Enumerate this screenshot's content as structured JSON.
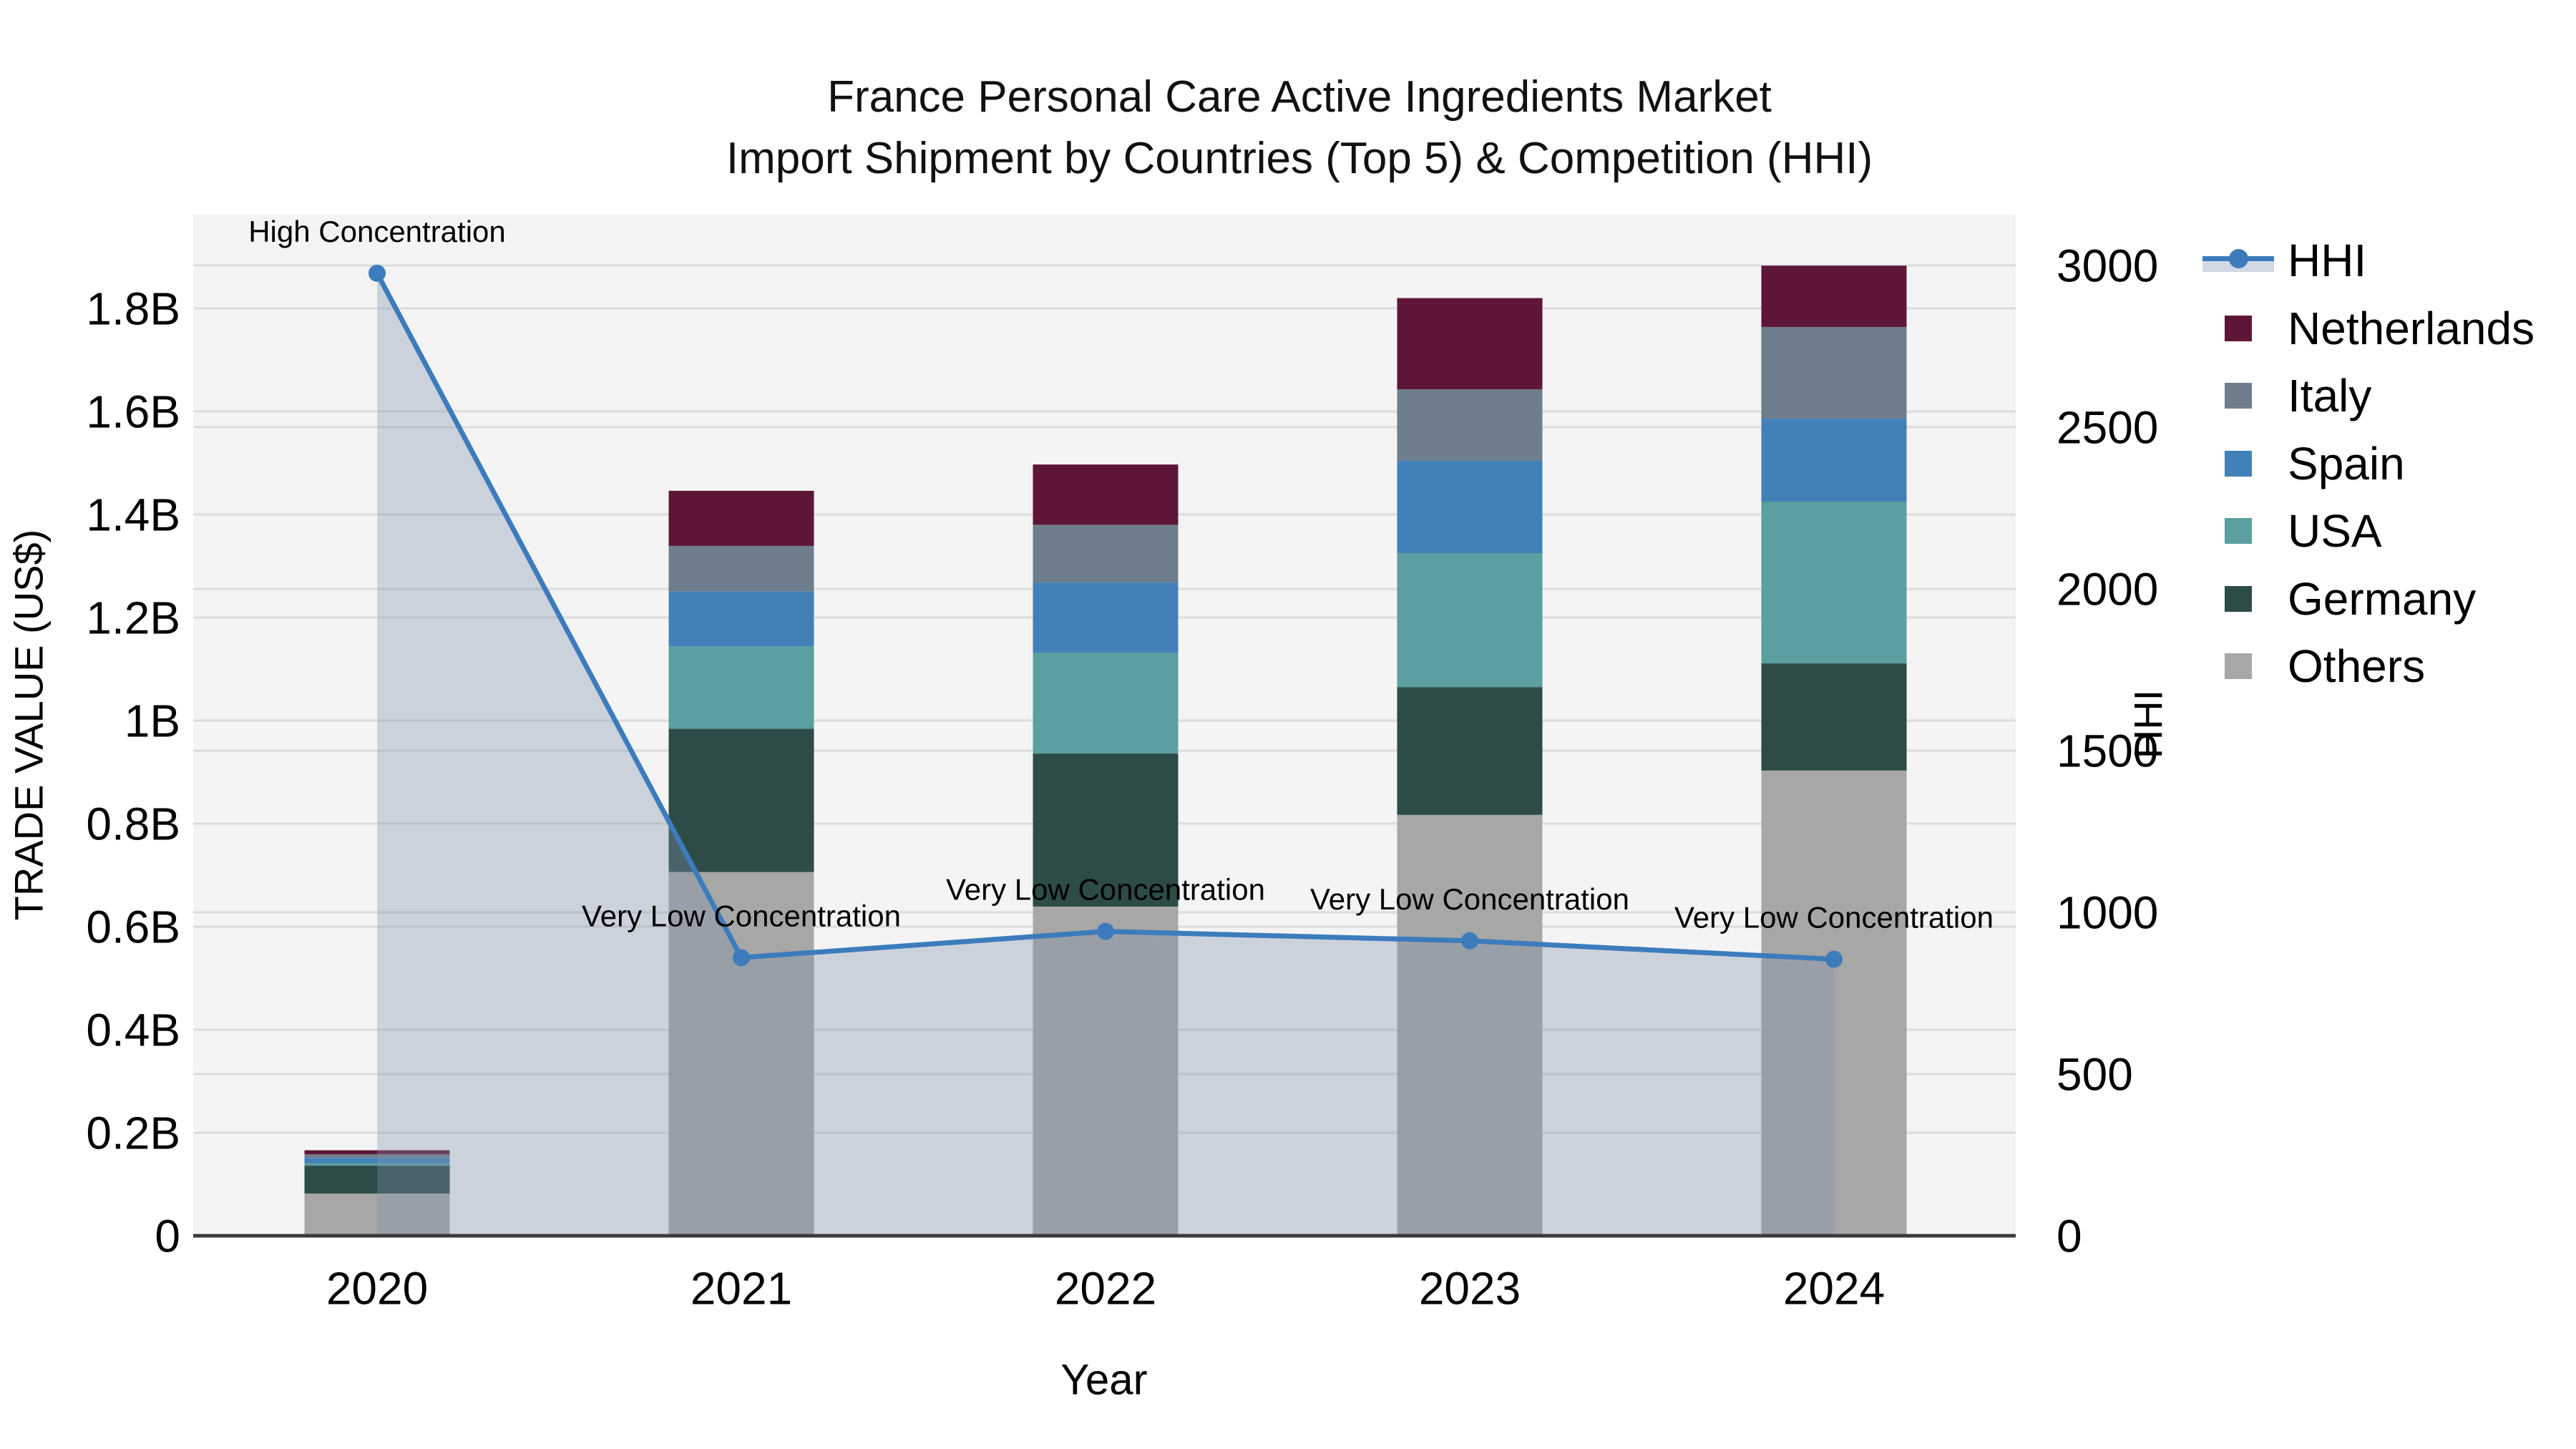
{
  "title": {
    "line1": "France Personal Care Active Ingredients Market",
    "line2": "Import Shipment by Countries (Top 5) & Competition (HHI)"
  },
  "axes": {
    "left": {
      "title": "TRADE VALUE (US$)",
      "range_b": [
        0,
        1.98
      ],
      "ticks": [
        {
          "value": 0,
          "label": "0"
        },
        {
          "value": 0.2,
          "label": "0.2B"
        },
        {
          "value": 0.4,
          "label": "0.4B"
        },
        {
          "value": 0.6,
          "label": "0.6B"
        },
        {
          "value": 0.8,
          "label": "0.8B"
        },
        {
          "value": 1,
          "label": "1B"
        },
        {
          "value": 1.2,
          "label": "1.2B"
        },
        {
          "value": 1.4,
          "label": "1.4B"
        },
        {
          "value": 1.6,
          "label": "1.6B"
        },
        {
          "value": 1.8,
          "label": "1.8B"
        }
      ]
    },
    "right": {
      "title": "HHI",
      "range": [
        0,
        3155
      ],
      "ticks": [
        {
          "value": 0,
          "label": "0"
        },
        {
          "value": 500,
          "label": "500"
        },
        {
          "value": 1000,
          "label": "1000"
        },
        {
          "value": 1500,
          "label": "1500"
        },
        {
          "value": 2000,
          "label": "2000"
        },
        {
          "value": 2500,
          "label": "2500"
        },
        {
          "value": 3000,
          "label": "3000"
        }
      ]
    },
    "x": {
      "title": "Year"
    }
  },
  "chart_data": {
    "type": "bar+line",
    "title": "France Personal Care Active Ingredients Market Import Shipment by Countries (Top 5) & Competition (HHI)",
    "xlabel": "Year",
    "ylabel": "TRADE VALUE (US$)",
    "y2label": "HHI",
    "units": "billions of US$ (stacked bars, left axis) and HHI index (line, right axis)",
    "grid": true,
    "legend_position": "right",
    "categories": [
      "2020",
      "2021",
      "2022",
      "2023",
      "2024"
    ],
    "series": [
      {
        "name": "Others",
        "color": "#A7A7A5",
        "values": [
          0.082,
          0.706,
          0.639,
          0.817,
          0.903
        ]
      },
      {
        "name": "Germany",
        "color": "#2D4B47",
        "values": [
          0.054,
          0.278,
          0.297,
          0.248,
          0.208
        ]
      },
      {
        "name": "USA",
        "color": "#5B9FA0",
        "values": [
          0.005,
          0.16,
          0.195,
          0.26,
          0.314
        ]
      },
      {
        "name": "Spain",
        "color": "#4281B8",
        "values": [
          0.01,
          0.107,
          0.137,
          0.18,
          0.161
        ]
      },
      {
        "name": "Italy",
        "color": "#6F7E8D",
        "values": [
          0.007,
          0.088,
          0.112,
          0.138,
          0.178
        ]
      },
      {
        "name": "Netherlands",
        "color": "#5E1638",
        "values": [
          0.008,
          0.107,
          0.117,
          0.177,
          0.119
        ]
      }
    ],
    "bar_totals_b": [
      0.166,
      1.446,
      1.497,
      1.82,
      1.883
    ],
    "line_series": {
      "name": "HHI",
      "color": "#3C7CBC",
      "fill_color": "rgba(128,146,175,0.35)",
      "values": [
        2976,
        860,
        941,
        912,
        855
      ]
    },
    "annotations": [
      {
        "x": "2020",
        "text": "High Concentration"
      },
      {
        "x": "2021",
        "text": "Very Low Concentration"
      },
      {
        "x": "2022",
        "text": "Very Low Concentration"
      },
      {
        "x": "2023",
        "text": "Very Low Concentration"
      },
      {
        "x": "2024",
        "text": "Very Low Concentration"
      }
    ]
  },
  "legend": {
    "items": [
      {
        "label": "HHI",
        "type": "line",
        "color": "#3C7CBC"
      },
      {
        "label": "Netherlands",
        "type": "box",
        "color": "#5E1638"
      },
      {
        "label": "Italy",
        "type": "box",
        "color": "#6F7E8D"
      },
      {
        "label": "Spain",
        "type": "box",
        "color": "#4281B8"
      },
      {
        "label": "USA",
        "type": "box",
        "color": "#5B9FA0"
      },
      {
        "label": "Germany",
        "type": "box",
        "color": "#2D4B47"
      },
      {
        "label": "Others",
        "type": "box",
        "color": "#A7A7A5"
      }
    ]
  },
  "colors": {
    "plot_bg": "#F4F4F4",
    "grid": "#DCDCDC",
    "axis_line": "#3A3A3A",
    "text": "#000000",
    "fill_band": "#D2D8E3"
  }
}
